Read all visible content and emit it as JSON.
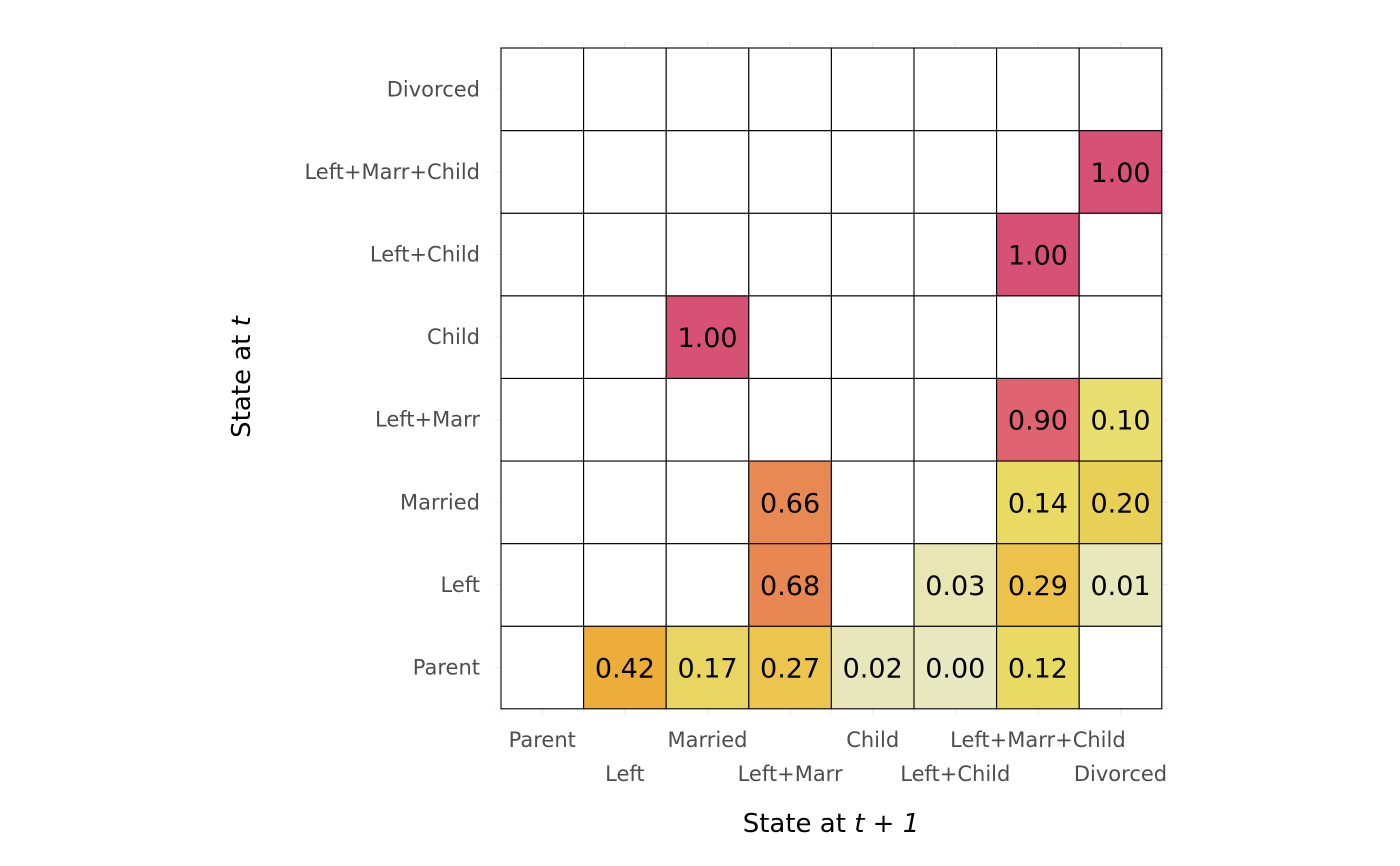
{
  "chart_data": {
    "type": "heatmap",
    "x_states": [
      "Parent",
      "Left",
      "Married",
      "Left+Marr",
      "Child",
      "Left+Child",
      "Left+Marr+Child",
      "Divorced"
    ],
    "y_states": [
      "Parent",
      "Left",
      "Married",
      "Left+Marr",
      "Child",
      "Left+Child",
      "Left+Marr+Child",
      "Divorced"
    ],
    "xlabel": {
      "prefix": "State at ",
      "italic": "t + 1"
    },
    "ylabel": {
      "prefix": "State at ",
      "italic": "t"
    },
    "cells": [
      {
        "from": "Parent",
        "to": "Left",
        "value": 0.42,
        "label": "0.42",
        "color": "#ecad3b"
      },
      {
        "from": "Parent",
        "to": "Married",
        "value": 0.17,
        "label": "0.17",
        "color": "#e8d562"
      },
      {
        "from": "Parent",
        "to": "Left+Marr",
        "value": 0.27,
        "label": "0.27",
        "color": "#ecc54f"
      },
      {
        "from": "Parent",
        "to": "Child",
        "value": 0.02,
        "label": "0.02",
        "color": "#e8e7bb"
      },
      {
        "from": "Parent",
        "to": "Left+Child",
        "value": 0.0,
        "label": "0.00",
        "color": "#e8e8c1"
      },
      {
        "from": "Parent",
        "to": "Left+Marr+Child",
        "value": 0.12,
        "label": "0.12",
        "color": "#e8da63"
      },
      {
        "from": "Left",
        "to": "Left+Marr",
        "value": 0.68,
        "label": "0.68",
        "color": "#e88752"
      },
      {
        "from": "Left",
        "to": "Left+Child",
        "value": 0.03,
        "label": "0.03",
        "color": "#e8e6b3"
      },
      {
        "from": "Left",
        "to": "Left+Marr+Child",
        "value": 0.29,
        "label": "0.29",
        "color": "#ecc24b"
      },
      {
        "from": "Left",
        "to": "Divorced",
        "value": 0.01,
        "label": "0.01",
        "color": "#e8e8bd"
      },
      {
        "from": "Married",
        "to": "Left+Marr",
        "value": 0.66,
        "label": "0.66",
        "color": "#e88852"
      },
      {
        "from": "Married",
        "to": "Left+Marr+Child",
        "value": 0.14,
        "label": "0.14",
        "color": "#e8da62"
      },
      {
        "from": "Married",
        "to": "Divorced",
        "value": 0.2,
        "label": "0.20",
        "color": "#e8cf56"
      },
      {
        "from": "Left+Marr",
        "to": "Left+Marr+Child",
        "value": 0.9,
        "label": "0.90",
        "color": "#df6370"
      },
      {
        "from": "Left+Marr",
        "to": "Divorced",
        "value": 0.1,
        "label": "0.10",
        "color": "#e8df70"
      },
      {
        "from": "Child",
        "to": "Married",
        "value": 1.0,
        "label": "1.00",
        "color": "#d75177"
      },
      {
        "from": "Left+Child",
        "to": "Left+Marr+Child",
        "value": 1.0,
        "label": "1.00",
        "color": "#d75177"
      },
      {
        "from": "Left+Marr+Child",
        "to": "Divorced",
        "value": 1.0,
        "label": "1.00",
        "color": "#d75177"
      }
    ]
  }
}
